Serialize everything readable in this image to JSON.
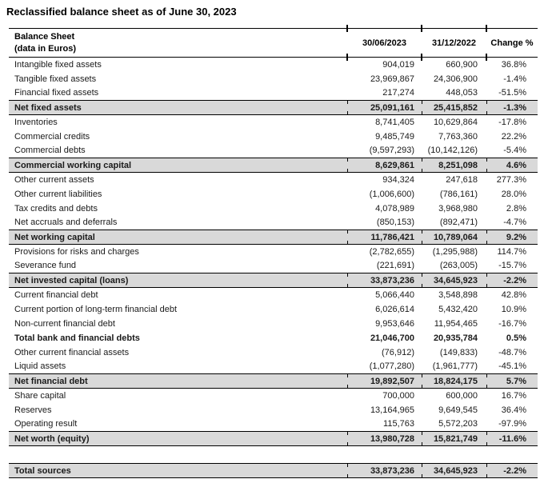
{
  "title": "Reclassified balance sheet as of June 30, 2023",
  "colors": {
    "total_row_bg": "#d9d9d9",
    "border": "#000000",
    "text": "#1a1a1a"
  },
  "table": {
    "header": {
      "label_line1": "Balance Sheet",
      "label_line2": "(data in Euros)",
      "col_2023": "30/06/2023",
      "col_2022": "31/12/2022",
      "col_change": "Change %"
    },
    "rows": [
      {
        "label": "Intangible fixed assets",
        "v2023": "904,019",
        "v2022": "660,900",
        "change": "36.8%",
        "style": "normal"
      },
      {
        "label": "Tangible fixed assets",
        "v2023": "23,969,867",
        "v2022": "24,306,900",
        "change": "-1.4%",
        "style": "normal"
      },
      {
        "label": "Financial fixed assets",
        "v2023": "217,274",
        "v2022": "448,053",
        "change": "-51.5%",
        "style": "normal"
      },
      {
        "label": "Net fixed assets",
        "v2023": "25,091,161",
        "v2022": "25,415,852",
        "change": "-1.3%",
        "style": "total"
      },
      {
        "label": "Inventories",
        "v2023": "8,741,405",
        "v2022": "10,629,864",
        "change": "-17.8%",
        "style": "normal"
      },
      {
        "label": "Commercial credits",
        "v2023": "9,485,749",
        "v2022": "7,763,360",
        "change": "22.2%",
        "style": "normal"
      },
      {
        "label": "Commercial debts",
        "v2023": "(9,597,293)",
        "v2022": "(10,142,126)",
        "change": "-5.4%",
        "style": "normal"
      },
      {
        "label": "Commercial working capital",
        "v2023": "8,629,861",
        "v2022": "8,251,098",
        "change": "4.6%",
        "style": "total"
      },
      {
        "label": "Other current assets",
        "v2023": "934,324",
        "v2022": "247,618",
        "change": "277.3%",
        "style": "normal"
      },
      {
        "label": "Other current liabilities",
        "v2023": "(1,006,600)",
        "v2022": "(786,161)",
        "change": "28.0%",
        "style": "normal"
      },
      {
        "label": "Tax credits and debts",
        "v2023": "4,078,989",
        "v2022": "3,968,980",
        "change": "2.8%",
        "style": "normal"
      },
      {
        "label": "Net accruals and deferrals",
        "v2023": "(850,153)",
        "v2022": "(892,471)",
        "change": "-4.7%",
        "style": "normal"
      },
      {
        "label": "Net working capital",
        "v2023": "11,786,421",
        "v2022": "10,789,064",
        "change": "9.2%",
        "style": "total"
      },
      {
        "label": "Provisions for risks and charges",
        "v2023": "(2,782,655)",
        "v2022": "(1,295,988)",
        "change": "114.7%",
        "style": "normal"
      },
      {
        "label": "Severance fund",
        "v2023": "(221,691)",
        "v2022": "(263,005)",
        "change": "-15.7%",
        "style": "normal"
      },
      {
        "label": "Net invested capital (loans)",
        "v2023": "33,873,236",
        "v2022": "34,645,923",
        "change": "-2.2%",
        "style": "total"
      },
      {
        "label": "Current financial debt",
        "v2023": "5,066,440",
        "v2022": "3,548,898",
        "change": "42.8%",
        "style": "normal"
      },
      {
        "label": "Current portion of long-term financial debt",
        "v2023": "6,026,614",
        "v2022": "5,432,420",
        "change": "10.9%",
        "style": "normal"
      },
      {
        "label": "Non-current financial debt",
        "v2023": "9,953,646",
        "v2022": "11,954,465",
        "change": "-16.7%",
        "style": "normal"
      },
      {
        "label": "Total bank and financial debts",
        "v2023": "21,046,700",
        "v2022": "20,935,784",
        "change": "0.5%",
        "style": "bold"
      },
      {
        "label": "Other current financial assets",
        "v2023": "(76,912)",
        "v2022": "(149,833)",
        "change": "-48.7%",
        "style": "normal"
      },
      {
        "label": "Liquid assets",
        "v2023": "(1,077,280)",
        "v2022": "(1,961,777)",
        "change": "-45.1%",
        "style": "normal"
      },
      {
        "label": "Net financial debt",
        "v2023": "19,892,507",
        "v2022": "18,824,175",
        "change": "5.7%",
        "style": "total"
      },
      {
        "label": "Share capital",
        "v2023": "700,000",
        "v2022": "600,000",
        "change": "16.7%",
        "style": "normal"
      },
      {
        "label": "Reserves",
        "v2023": "13,164,965",
        "v2022": "9,649,545",
        "change": "36.4%",
        "style": "normal"
      },
      {
        "label": "Operating result",
        "v2023": "115,763",
        "v2022": "5,572,203",
        "change": "-97.9%",
        "style": "normal"
      },
      {
        "label": "Net worth (equity)",
        "v2023": "13,980,728",
        "v2022": "15,821,749",
        "change": "-11.6%",
        "style": "total"
      },
      {
        "label": "",
        "v2023": "",
        "v2022": "",
        "change": "",
        "style": "spacer"
      },
      {
        "label": "Total sources",
        "v2023": "33,873,236",
        "v2022": "34,645,923",
        "change": "-2.2%",
        "style": "total"
      }
    ]
  }
}
